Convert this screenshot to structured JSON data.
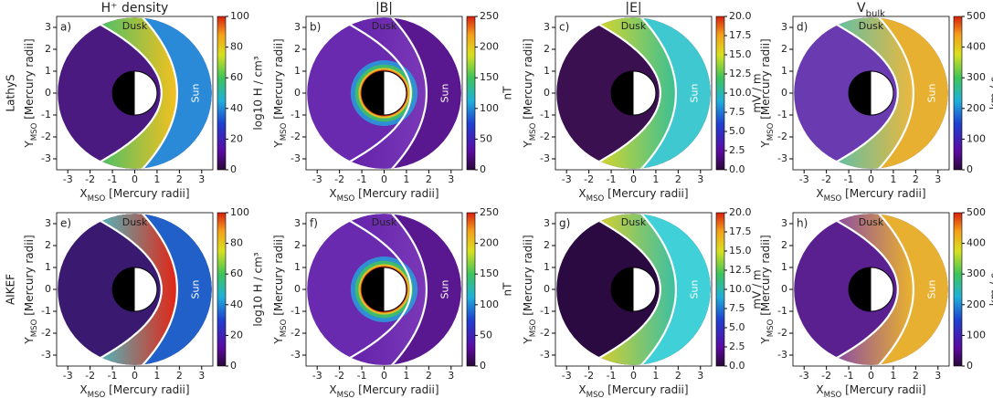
{
  "chart_data": [
    {
      "type": "heatmap",
      "title": "H⁺ density",
      "model": "LathyS",
      "panel_label": "a)",
      "annotations": [
        "Dusk",
        "Sun"
      ],
      "xlabel": [
        "X",
        "MSO",
        " [Mercury radii]"
      ],
      "ylabel": [
        "Y",
        "MSO",
        " [Mercury radii]"
      ],
      "xlim": [
        -3.5,
        3.5
      ],
      "ylim": [
        -3.5,
        3.5
      ],
      "xticks": [
        -3,
        -2,
        -1,
        0,
        1,
        2,
        3
      ],
      "yticks": [
        -3,
        -2,
        -1,
        0,
        1,
        2,
        3
      ],
      "colorbar": {
        "label": "log10 H / cm³",
        "lim": [
          0,
          100
        ],
        "ticks": [
          0,
          20,
          40,
          60,
          80,
          100
        ]
      },
      "colors": {
        "inner": "#4a1a80",
        "sheath": [
          "#38c070",
          "#f0c020"
        ],
        "upstream": "#2a8ad8"
      }
    },
    {
      "type": "heatmap",
      "title": "|B|",
      "panel_label": "b)",
      "annotations": [
        "Dusk",
        "Sun"
      ],
      "xlabel": [
        "X",
        "MSO",
        " [Mercury radii]"
      ],
      "ylabel": [
        "Y",
        "MSO",
        " [Mercury radii]"
      ],
      "xlim": [
        -3.5,
        3.5
      ],
      "ylim": [
        -3.5,
        3.5
      ],
      "xticks": [
        -3,
        -2,
        -1,
        0,
        1,
        2,
        3
      ],
      "yticks": [
        -3,
        -2,
        -1,
        0,
        1,
        2,
        3
      ],
      "colorbar": {
        "label": "nT",
        "lim": [
          0,
          250
        ],
        "ticks": [
          0,
          50,
          100,
          150,
          200,
          250
        ]
      },
      "colors": {
        "inner": "#6a2ab0",
        "sheath": [
          "#6020a8",
          "#7a38b8"
        ],
        "upstream": "#5a1890",
        "ring": true
      }
    },
    {
      "type": "heatmap",
      "title": "|E|",
      "panel_label": "c)",
      "annotations": [
        "Dusk",
        "Sun"
      ],
      "xlabel": [
        "X",
        "MSO",
        " [Mercury radii]"
      ],
      "ylabel": [
        "Y",
        "MSO",
        " [Mercury radii]"
      ],
      "xlim": [
        -3.5,
        3.5
      ],
      "ylim": [
        -3.5,
        3.5
      ],
      "xticks": [
        -3,
        -2,
        -1,
        0,
        1,
        2,
        3
      ],
      "yticks": [
        -3,
        -2,
        -1,
        0,
        1,
        2,
        3
      ],
      "colorbar": {
        "label": "mV / m",
        "lim": [
          0,
          20
        ],
        "ticks": [
          {
            "value": 0,
            "label": "0.0"
          },
          2.5,
          {
            "value": 5,
            "label": "5.0"
          },
          7.5,
          {
            "value": 10,
            "label": "10.0"
          },
          12.5,
          {
            "value": 15,
            "label": "15.0"
          },
          17.5,
          {
            "value": 20,
            "label": "20.0"
          }
        ]
      },
      "colors": {
        "inner": "#3a1050",
        "sheath": [
          "#e8d820",
          "#40c090"
        ],
        "upstream": "#40c8d0"
      }
    },
    {
      "type": "heatmap",
      "title": [
        "V",
        "bulk"
      ],
      "panel_label": "d)",
      "annotations": [
        "Dusk",
        "Sun"
      ],
      "xlabel": [
        "X",
        "MSO",
        " [Mercury radii]"
      ],
      "ylabel": [
        "Y",
        "MSO",
        " [Mercury radii]"
      ],
      "xlim": [
        -3.5,
        3.5
      ],
      "ylim": [
        -3.5,
        3.5
      ],
      "xticks": [
        -3,
        -2,
        -1,
        0,
        1,
        2,
        3
      ],
      "yticks": [
        -3,
        -2,
        -1,
        0,
        1,
        2,
        3
      ],
      "colorbar": {
        "label": "km / s",
        "lim": [
          0,
          500
        ],
        "ticks": [
          0,
          100,
          200,
          300,
          400,
          500
        ]
      },
      "colors": {
        "inner": "#6a3ab0",
        "sheath": [
          "#50c0b0",
          "#e8b840"
        ],
        "upstream": "#e8b030"
      }
    },
    {
      "type": "heatmap",
      "model": "AIKEF",
      "panel_label": "e)",
      "annotations": [
        "Dusk",
        "Sun"
      ],
      "xlabel": [
        "X",
        "MSO",
        " [Mercury radii]"
      ],
      "ylabel": [
        "Y",
        "MSO",
        " [Mercury radii]"
      ],
      "xlim": [
        -3.5,
        3.5
      ],
      "ylim": [
        -3.5,
        3.5
      ],
      "xticks": [
        -3,
        -2,
        -1,
        0,
        1,
        2,
        3
      ],
      "yticks": [
        -3,
        -2,
        -1,
        0,
        1,
        2,
        3
      ],
      "colorbar": {
        "label": "log10 H / cm³",
        "lim": [
          0,
          100
        ],
        "ticks": [
          0,
          20,
          40,
          60,
          80,
          100
        ]
      },
      "colors": {
        "inner": "#3a1a70",
        "sheath": [
          "#40c8d0",
          "#e02818"
        ],
        "upstream": "#2060c8"
      }
    },
    {
      "type": "heatmap",
      "panel_label": "f)",
      "annotations": [
        "Dusk",
        "Sun"
      ],
      "xlabel": [
        "X",
        "MSO",
        " [Mercury radii]"
      ],
      "ylabel": [
        "Y",
        "MSO",
        " [Mercury radii]"
      ],
      "xlim": [
        -3.5,
        3.5
      ],
      "ylim": [
        -3.5,
        3.5
      ],
      "xticks": [
        -3,
        -2,
        -1,
        0,
        1,
        2,
        3
      ],
      "yticks": [
        -3,
        -2,
        -1,
        0,
        1,
        2,
        3
      ],
      "colorbar": {
        "label": "nT",
        "lim": [
          0,
          250
        ],
        "ticks": [
          0,
          50,
          100,
          150,
          200,
          250
        ]
      },
      "colors": {
        "inner": "#6a2ab0",
        "sheath": [
          "#6020a8",
          "#7a38b8"
        ],
        "upstream": "#5a1890",
        "ring": true
      }
    },
    {
      "type": "heatmap",
      "panel_label": "g)",
      "annotations": [
        "Dusk",
        "Sun"
      ],
      "xlabel": [
        "X",
        "MSO",
        " [Mercury radii]"
      ],
      "ylabel": [
        "Y",
        "MSO",
        " [Mercury radii]"
      ],
      "xlim": [
        -3.5,
        3.5
      ],
      "ylim": [
        -3.5,
        3.5
      ],
      "xticks": [
        -3,
        -2,
        -1,
        0,
        1,
        2,
        3
      ],
      "yticks": [
        -3,
        -2,
        -1,
        0,
        1,
        2,
        3
      ],
      "colorbar": {
        "label": "mV / m",
        "lim": [
          0,
          20
        ],
        "ticks": [
          {
            "value": 0,
            "label": "0.0"
          },
          2.5,
          {
            "value": 5,
            "label": "5.0"
          },
          7.5,
          {
            "value": 10,
            "label": "10.0"
          },
          12.5,
          {
            "value": 15,
            "label": "15.0"
          },
          17.5,
          {
            "value": 20,
            "label": "20.0"
          }
        ]
      },
      "colors": {
        "inner": "#2a0a40",
        "sheath": [
          "#e8d020",
          "#40c0a0"
        ],
        "upstream": "#40d0d8"
      }
    },
    {
      "type": "heatmap",
      "panel_label": "h)",
      "annotations": [
        "Dusk",
        "Sun"
      ],
      "xlabel": [
        "X",
        "MSO",
        " [Mercury radii]"
      ],
      "ylabel": [
        "Y",
        "MSO",
        " [Mercury radii]"
      ],
      "xlim": [
        -3.5,
        3.5
      ],
      "ylim": [
        -3.5,
        3.5
      ],
      "xticks": [
        -3,
        -2,
        -1,
        0,
        1,
        2,
        3
      ],
      "yticks": [
        -3,
        -2,
        -1,
        0,
        1,
        2,
        3
      ],
      "colorbar": {
        "label": "km / s",
        "lim": [
          0,
          500
        ],
        "ticks": [
          0,
          100,
          200,
          300,
          400,
          500
        ]
      },
      "colors": {
        "inner": "#5a2090",
        "sheath": [
          "#8040b0",
          "#e8b030"
        ],
        "upstream": "#e8b030"
      }
    }
  ]
}
